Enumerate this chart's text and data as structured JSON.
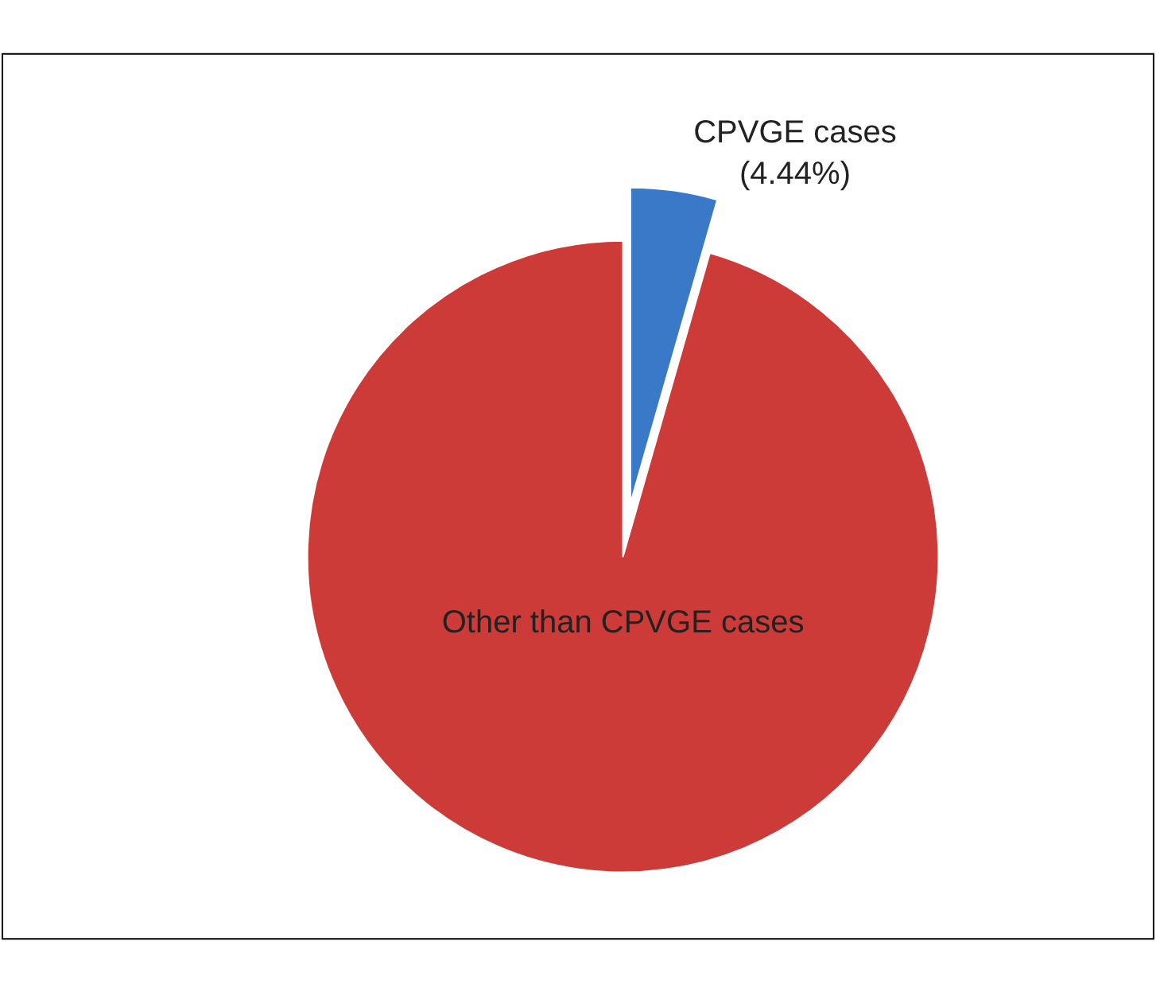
{
  "chart_data": {
    "type": "pie",
    "categories": [
      "CPVGE cases",
      "Other than CPVGE cases"
    ],
    "values": [
      4.44,
      95.56
    ],
    "colors": [
      "#3a78c8",
      "#cc3b38"
    ],
    "value_labels": [
      "(4.44%)",
      null
    ],
    "legend": false
  }
}
